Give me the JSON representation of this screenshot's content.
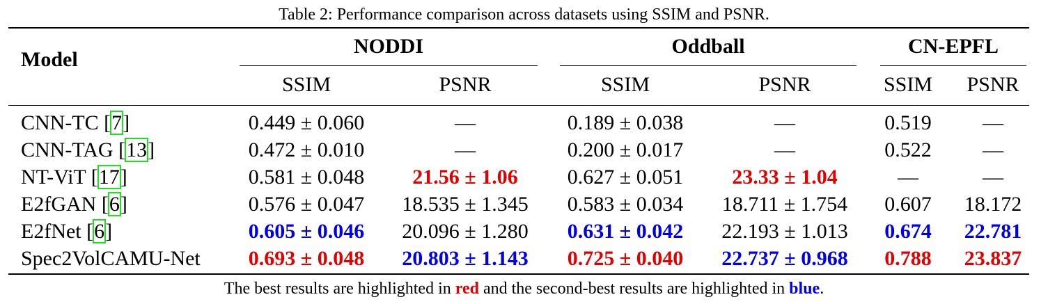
{
  "caption": "Table 2: Performance comparison across datasets using SSIM and PSNR.",
  "header": {
    "model": "Model",
    "groups": [
      "NODDI",
      "Oddball",
      "CN-EPFL"
    ],
    "subcols": [
      "SSIM",
      "PSNR",
      "SSIM",
      "PSNR",
      "SSIM",
      "PSNR"
    ]
  },
  "rows": [
    {
      "model": "CNN-TC",
      "ref": "7",
      "cells": [
        {
          "text": "0.449 ± 0.060",
          "style": "plain"
        },
        {
          "text": "—",
          "style": "plain"
        },
        {
          "text": "0.189 ± 0.038",
          "style": "plain"
        },
        {
          "text": "—",
          "style": "plain"
        },
        {
          "text": "0.519",
          "style": "plain"
        },
        {
          "text": "—",
          "style": "plain"
        }
      ]
    },
    {
      "model": "CNN-TAG",
      "ref": "13",
      "cells": [
        {
          "text": "0.472 ± 0.010",
          "style": "plain"
        },
        {
          "text": "—",
          "style": "plain"
        },
        {
          "text": "0.200 ± 0.017",
          "style": "plain"
        },
        {
          "text": "—",
          "style": "plain"
        },
        {
          "text": "0.522",
          "style": "plain"
        },
        {
          "text": "—",
          "style": "plain"
        }
      ]
    },
    {
      "model": "NT-ViT",
      "ref": "17",
      "cells": [
        {
          "text": "0.581 ± 0.048",
          "style": "plain"
        },
        {
          "text": "21.56 ± 1.06",
          "style": "best"
        },
        {
          "text": "0.627 ± 0.051",
          "style": "plain"
        },
        {
          "text": "23.33 ± 1.04",
          "style": "best"
        },
        {
          "text": "—",
          "style": "plain"
        },
        {
          "text": "—",
          "style": "plain"
        }
      ]
    },
    {
      "model": "E2fGAN",
      "ref": "6",
      "cells": [
        {
          "text": "0.576 ± 0.047",
          "style": "plain"
        },
        {
          "text": "18.535 ± 1.345",
          "style": "plain"
        },
        {
          "text": "0.583 ± 0.034",
          "style": "plain"
        },
        {
          "text": "18.711 ± 1.754",
          "style": "plain"
        },
        {
          "text": "0.607",
          "style": "plain"
        },
        {
          "text": "18.172",
          "style": "plain"
        }
      ]
    },
    {
      "model": "E2fNet",
      "ref": "6",
      "cells": [
        {
          "text": "0.605 ± 0.046",
          "style": "second"
        },
        {
          "text": "20.096 ± 1.280",
          "style": "plain"
        },
        {
          "text": "0.631 ± 0.042",
          "style": "second"
        },
        {
          "text": "22.193 ± 1.013",
          "style": "plain"
        },
        {
          "text": "0.674",
          "style": "second"
        },
        {
          "text": "22.781",
          "style": "second"
        }
      ]
    },
    {
      "model": "Spec2VolCAMU-Net",
      "ref": "",
      "cells": [
        {
          "text": "0.693 ± 0.048",
          "style": "best"
        },
        {
          "text": "20.803 ± 1.143",
          "style": "second"
        },
        {
          "text": "0.725 ± 0.040",
          "style": "best"
        },
        {
          "text": "22.737 ± 0.968",
          "style": "second"
        },
        {
          "text": "0.788",
          "style": "best"
        },
        {
          "text": "23.837",
          "style": "best"
        }
      ]
    }
  ],
  "footnote": {
    "prefix": "The best results are highlighted in ",
    "red_word": "red",
    "middle": " and the second-best results are highlighted in ",
    "blue_word": "blue",
    "suffix": "."
  },
  "colors": {
    "best": "#e00000",
    "second": "#0000e6",
    "ref_box": "#22dd22"
  }
}
